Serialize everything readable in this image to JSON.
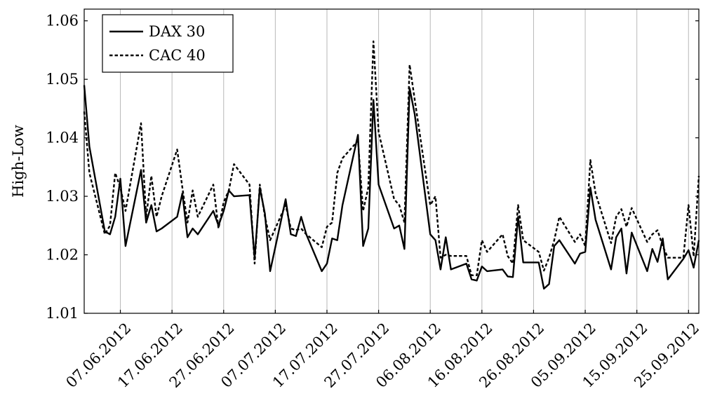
{
  "chart_data": {
    "type": "line",
    "title": "",
    "xlabel": "",
    "ylabel": "High-Low",
    "xlim": [
      "2012-05-31",
      "2012-09-27"
    ],
    "ylim": [
      1.01,
      1.062
    ],
    "yticks": [
      1.01,
      1.02,
      1.03,
      1.04,
      1.05,
      1.06
    ],
    "xticks": [
      "07.06.2012",
      "17.06.2012",
      "27.06.2012",
      "07.07.2012",
      "17.07.2012",
      "27.07.2012",
      "06.08.2012",
      "16.08.2012",
      "26.08.2012",
      "05.09.2012",
      "15.09.2012",
      "25.09.2012"
    ],
    "grid": "vertical",
    "legend_position": "top-left",
    "series": [
      {
        "name": "DAX 30",
        "style": "solid",
        "color": "#000000",
        "x": [
          "2012-05-31",
          "2012-06-01",
          "2012-06-04",
          "2012-06-05",
          "2012-06-06",
          "2012-06-07",
          "2012-06-08",
          "2012-06-11",
          "2012-06-12",
          "2012-06-13",
          "2012-06-14",
          "2012-06-15",
          "2012-06-18",
          "2012-06-19",
          "2012-06-20",
          "2012-06-21",
          "2012-06-22",
          "2012-06-25",
          "2012-06-26",
          "2012-06-27",
          "2012-06-28",
          "2012-06-29",
          "2012-07-02",
          "2012-07-03",
          "2012-07-04",
          "2012-07-05",
          "2012-07-06",
          "2012-07-09",
          "2012-07-10",
          "2012-07-11",
          "2012-07-12",
          "2012-07-13",
          "2012-07-16",
          "2012-07-17",
          "2012-07-18",
          "2012-07-19",
          "2012-07-20",
          "2012-07-23",
          "2012-07-24",
          "2012-07-25",
          "2012-07-26",
          "2012-07-27",
          "2012-07-30",
          "2012-07-31",
          "2012-08-01",
          "2012-08-02",
          "2012-08-03",
          "2012-08-06",
          "2012-08-07",
          "2012-08-08",
          "2012-08-09",
          "2012-08-10",
          "2012-08-13",
          "2012-08-14",
          "2012-08-15",
          "2012-08-16",
          "2012-08-17",
          "2012-08-20",
          "2012-08-21",
          "2012-08-22",
          "2012-08-23",
          "2012-08-24",
          "2012-08-27",
          "2012-08-28",
          "2012-08-29",
          "2012-08-30",
          "2012-08-31",
          "2012-09-03",
          "2012-09-04",
          "2012-09-05",
          "2012-09-06",
          "2012-09-07",
          "2012-09-10",
          "2012-09-11",
          "2012-09-12",
          "2012-09-13",
          "2012-09-14",
          "2012-09-17",
          "2012-09-18",
          "2012-09-19",
          "2012-09-20",
          "2012-09-21",
          "2012-09-24",
          "2012-09-25",
          "2012-09-26",
          "2012-09-27"
        ],
        "values": [
          1.049,
          1.0385,
          1.024,
          1.0235,
          1.0265,
          1.033,
          1.0215,
          1.0345,
          1.0255,
          1.0285,
          1.024,
          1.0245,
          1.0265,
          1.0305,
          1.023,
          1.0245,
          1.0235,
          1.0275,
          1.025,
          1.0275,
          1.031,
          1.03,
          1.0302,
          1.0194,
          1.0315,
          1.027,
          1.0172,
          1.0295,
          1.0235,
          1.0232,
          1.0265,
          1.0235,
          1.0172,
          1.0185,
          1.0228,
          1.0225,
          1.0285,
          1.0405,
          1.0215,
          1.0245,
          1.0465,
          1.032,
          1.0245,
          1.025,
          1.021,
          1.0485,
          1.044,
          1.0235,
          1.0225,
          1.0175,
          1.023,
          1.0175,
          1.0185,
          1.0158,
          1.0156,
          1.018,
          1.0172,
          1.0175,
          1.0163,
          1.0162,
          1.0265,
          1.0187,
          1.0187,
          1.0142,
          1.015,
          1.0215,
          1.0225,
          1.0185,
          1.0202,
          1.0205,
          1.0315,
          1.026,
          1.0175,
          1.023,
          1.0245,
          1.0168,
          1.0238,
          1.0172,
          1.021,
          1.0188,
          1.0228,
          1.0158,
          1.0193,
          1.0208,
          1.0178,
          1.0225
        ]
      },
      {
        "name": "CAC 40",
        "style": "dashed",
        "color": "#000000",
        "x": [
          "2012-05-31",
          "2012-06-01",
          "2012-06-04",
          "2012-06-05",
          "2012-06-06",
          "2012-06-07",
          "2012-06-08",
          "2012-06-11",
          "2012-06-12",
          "2012-06-13",
          "2012-06-14",
          "2012-06-15",
          "2012-06-18",
          "2012-06-19",
          "2012-06-20",
          "2012-06-21",
          "2012-06-22",
          "2012-06-25",
          "2012-06-26",
          "2012-06-27",
          "2012-06-28",
          "2012-06-29",
          "2012-07-02",
          "2012-07-03",
          "2012-07-04",
          "2012-07-05",
          "2012-07-06",
          "2012-07-09",
          "2012-07-10",
          "2012-07-11",
          "2012-07-12",
          "2012-07-13",
          "2012-07-16",
          "2012-07-17",
          "2012-07-18",
          "2012-07-19",
          "2012-07-20",
          "2012-07-23",
          "2012-07-24",
          "2012-07-25",
          "2012-07-26",
          "2012-07-27",
          "2012-07-30",
          "2012-07-31",
          "2012-08-01",
          "2012-08-02",
          "2012-08-03",
          "2012-08-06",
          "2012-08-07",
          "2012-08-08",
          "2012-08-09",
          "2012-08-10",
          "2012-08-13",
          "2012-08-14",
          "2012-08-15",
          "2012-08-16",
          "2012-08-17",
          "2012-08-20",
          "2012-08-21",
          "2012-08-22",
          "2012-08-23",
          "2012-08-24",
          "2012-08-27",
          "2012-08-28",
          "2012-08-29",
          "2012-08-30",
          "2012-08-31",
          "2012-09-03",
          "2012-09-04",
          "2012-09-05",
          "2012-09-06",
          "2012-09-07",
          "2012-09-10",
          "2012-09-11",
          "2012-09-12",
          "2012-09-13",
          "2012-09-14",
          "2012-09-17",
          "2012-09-18",
          "2012-09-19",
          "2012-09-20",
          "2012-09-21",
          "2012-09-24",
          "2012-09-25",
          "2012-09-26",
          "2012-09-27"
        ],
        "values": [
          1.0445,
          1.034,
          1.0235,
          1.025,
          1.034,
          1.0315,
          1.0275,
          1.0425,
          1.0265,
          1.0335,
          1.0265,
          1.03,
          1.038,
          1.0315,
          1.0255,
          1.031,
          1.0265,
          1.032,
          1.0245,
          1.029,
          1.031,
          1.0355,
          1.032,
          1.0185,
          1.032,
          1.0265,
          1.0225,
          1.0285,
          1.0245,
          1.0242,
          1.0245,
          1.0235,
          1.0213,
          1.0248,
          1.0255,
          1.034,
          1.0365,
          1.0395,
          1.0275,
          1.0315,
          1.0565,
          1.041,
          1.0295,
          1.0285,
          1.0255,
          1.0525,
          1.0465,
          1.0285,
          1.03,
          1.0195,
          1.02,
          1.0198,
          1.0198,
          1.0165,
          1.0165,
          1.0225,
          1.0205,
          1.0235,
          1.0198,
          1.0185,
          1.0285,
          1.0225,
          1.0205,
          1.0173,
          1.0195,
          1.0225,
          1.0265,
          1.0222,
          1.0235,
          1.0215,
          1.0362,
          1.0305,
          1.022,
          1.0265,
          1.0278,
          1.0248,
          1.028,
          1.0222,
          1.0235,
          1.0242,
          1.0215,
          1.0195,
          1.0195,
          1.0285,
          1.0197,
          1.0335
        ]
      }
    ]
  }
}
